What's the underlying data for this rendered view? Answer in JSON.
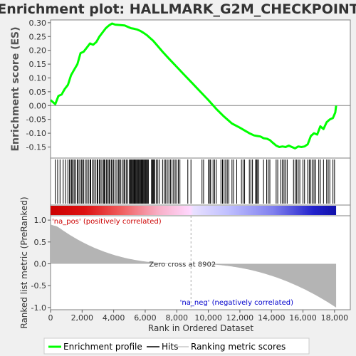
{
  "chart_data": {
    "type": "line",
    "title": "Enrichment plot: HALLMARK_G2M_CHECKPOINT",
    "ylabel_top": "Enrichment score (ES)",
    "ylabel_bottom": "Ranked list metric (PreRanked)",
    "xlabel": "Rank in Ordered Dataset",
    "xlim": [
      0,
      19000
    ],
    "ylim_top": [
      -0.19,
      0.31
    ],
    "ylim_bottom": [
      -1.05,
      1.1
    ],
    "x_ticks": [
      0,
      2000,
      4000,
      6000,
      8000,
      10000,
      12000,
      14000,
      16000,
      18000
    ],
    "x_tick_labels": [
      "0",
      "2,000",
      "4,000",
      "6,000",
      "8,000",
      "10,000",
      "12,000",
      "14,000",
      "16,000",
      "18,000"
    ],
    "y_ticks_top": [
      0.3,
      0.25,
      0.2,
      0.15,
      0.1,
      0.05,
      0.0,
      -0.05,
      -0.1,
      -0.15
    ],
    "y_tick_labels_top": [
      "0.30",
      "0.25",
      "0.20",
      "0.15",
      "0.10",
      "0.05",
      "0.00",
      "-0.05",
      "-0.10",
      "-0.15"
    ],
    "y_ticks_bottom": [
      1.0,
      0.5,
      0.0,
      -0.5,
      -1.0
    ],
    "y_tick_labels_bottom": [
      "1.0",
      "0.5",
      "0.0",
      "-0.5",
      "-1.0"
    ],
    "series": [
      {
        "name": "Enrichment profile",
        "color": "#00ff00",
        "x": [
          0,
          300,
          500,
          700,
          900,
          1100,
          1300,
          1500,
          1700,
          1900,
          2100,
          2300,
          2500,
          2700,
          2900,
          3100,
          3300,
          3500,
          3700,
          3900,
          4100,
          4300,
          4500,
          4700,
          4900,
          5100,
          5300,
          5500,
          5700,
          5900,
          6100,
          6300,
          6500,
          6800,
          7100,
          7500,
          8000,
          8500,
          9000,
          9500,
          10000,
          10500,
          11000,
          11500,
          12000,
          12300,
          12600,
          12900,
          13100,
          13300,
          13500,
          13700,
          13900,
          14100,
          14300,
          14500,
          14700,
          14900,
          15100,
          15300,
          15500,
          15700,
          15900,
          16100,
          16300,
          16500,
          16700,
          16900,
          17100,
          17300,
          17500,
          17700,
          17900,
          18050,
          18100
        ],
        "values": [
          0.02,
          0.005,
          0.035,
          0.04,
          0.06,
          0.075,
          0.11,
          0.13,
          0.15,
          0.19,
          0.195,
          0.21,
          0.225,
          0.22,
          0.23,
          0.25,
          0.265,
          0.28,
          0.29,
          0.297,
          0.293,
          0.292,
          0.291,
          0.29,
          0.285,
          0.28,
          0.278,
          0.275,
          0.27,
          0.263,
          0.255,
          0.245,
          0.235,
          0.215,
          0.195,
          0.17,
          0.14,
          0.11,
          0.08,
          0.05,
          0.02,
          -0.012,
          -0.04,
          -0.065,
          -0.08,
          -0.09,
          -0.1,
          -0.108,
          -0.11,
          -0.112,
          -0.118,
          -0.12,
          -0.125,
          -0.135,
          -0.145,
          -0.15,
          -0.148,
          -0.15,
          -0.145,
          -0.15,
          -0.155,
          -0.148,
          -0.15,
          -0.148,
          -0.14,
          -0.11,
          -0.1,
          -0.105,
          -0.075,
          -0.085,
          -0.06,
          -0.05,
          -0.045,
          -0.025,
          0.0
        ]
      }
    ],
    "hit_positions": [
      300,
      450,
      600,
      800,
      950,
      1100,
      1200,
      1300,
      1350,
      1420,
      1500,
      1600,
      1700,
      1750,
      1850,
      1950,
      2000,
      2100,
      2200,
      2300,
      2400,
      2500,
      2550,
      2650,
      2750,
      2850,
      2950,
      3000,
      3100,
      3150,
      3250,
      3350,
      3400,
      3450,
      3550,
      3600,
      3700,
      3750,
      3850,
      3900,
      4000,
      4100,
      4200,
      4300,
      4350,
      4450,
      4550,
      4650,
      4700,
      4800,
      4900,
      5000,
      5050,
      5100,
      5150,
      5200,
      5250,
      5300,
      5350,
      5400,
      5450,
      5500,
      5550,
      5600,
      5650,
      5700,
      5750,
      5800,
      5850,
      5900,
      5950,
      6000,
      6050,
      6100,
      6150,
      6200,
      6400,
      6450,
      6500,
      6550,
      6600,
      6700,
      6800,
      6900,
      7100,
      7200,
      7300,
      7400,
      7500,
      7600,
      7700,
      7800,
      7900,
      8000,
      8100,
      8200,
      8700,
      8900,
      9600,
      9700,
      10000,
      10100,
      10150,
      10300,
      10400,
      10500,
      10800,
      10900,
      11000,
      11100,
      11200,
      11300,
      11500,
      11600,
      11800,
      12100,
      12200,
      12300,
      12600,
      12700,
      12800,
      13000,
      13050,
      13100,
      13200,
      13500,
      13700,
      13800,
      13900,
      14300,
      14400,
      14600,
      14700,
      14800,
      14900,
      15000,
      15400,
      15500,
      15600,
      15700,
      15800,
      16000,
      16100,
      16300,
      16400,
      16500,
      16600,
      16700,
      16800,
      17000,
      17100,
      17300,
      17500,
      17600,
      17700,
      17900,
      18000
    ],
    "zero_cross_rank": 8902,
    "zero_cross_label": "Zero cross at 8902",
    "pos_label": "'na_pos' (positively correlated)",
    "neg_label": "'na_neg' (negatively correlated)",
    "legend": [
      {
        "label": "Enrichment profile",
        "color": "#00ff00"
      },
      {
        "label": "Hits",
        "color": "#000000"
      },
      {
        "label": "Ranking metric scores",
        "color": "#c8c8c8"
      }
    ],
    "colors": {
      "es_line": "#00ff00",
      "hit": "#000000",
      "metric_fill": "#b4b4b4",
      "pos_label": "#cc0000",
      "neg_label": "#0000cc",
      "title": "#333333"
    }
  }
}
